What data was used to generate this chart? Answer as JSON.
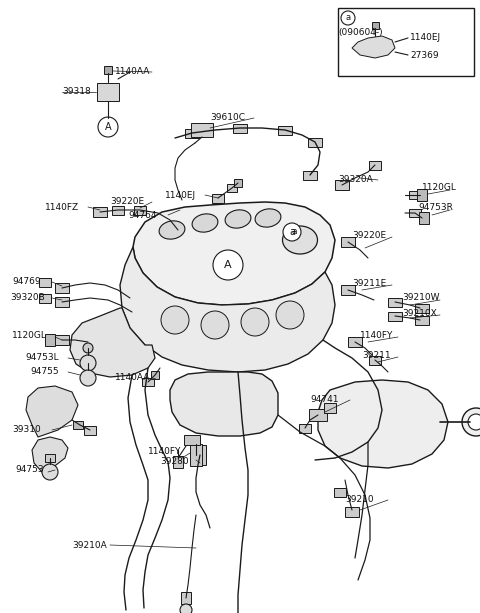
{
  "bg_color": "#ffffff",
  "fig_width": 4.8,
  "fig_height": 6.13,
  "dpi": 100,
  "line_color": "#1a1a1a",
  "label_color": "#111111"
}
